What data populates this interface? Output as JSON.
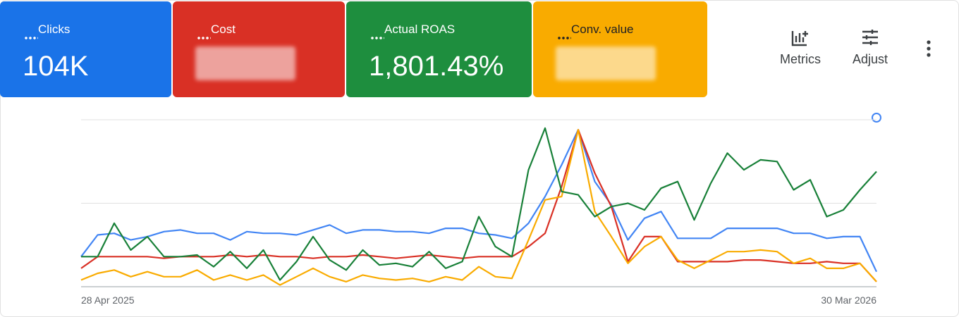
{
  "cards": [
    {
      "label": "Clicks",
      "value": "104K",
      "color": "#1a73e8",
      "text_color": "#ffffff"
    },
    {
      "label": "Cost",
      "color": "#d93025",
      "text_color": "#ffffff"
    },
    {
      "label": "Actual ROAS",
      "value": "1,801.43%",
      "color": "#1e8e3e",
      "text_color": "#ffffff"
    },
    {
      "label": "Conv. value",
      "color": "#f9ab00",
      "text_color": "#202124"
    }
  ],
  "toolbar": {
    "metrics": "Metrics",
    "adjust": "Adjust"
  },
  "chart_data": {
    "type": "line",
    "categories": [
      "28 Apr 2025",
      null,
      null,
      null,
      null,
      null,
      null,
      null,
      null,
      null,
      null,
      null,
      null,
      null,
      null,
      null,
      null,
      null,
      null,
      null,
      null,
      null,
      null,
      null,
      null,
      null,
      null,
      null,
      null,
      null,
      null,
      null,
      null,
      null,
      null,
      null,
      null,
      null,
      null,
      null,
      null,
      null,
      null,
      null,
      null,
      null,
      null,
      null,
      "30 Mar 2026"
    ],
    "ylim": [
      0,
      100
    ],
    "gridlines": [
      0,
      50,
      100
    ],
    "series": [
      {
        "color": "#4285f4",
        "values": [
          18,
          31,
          32,
          28,
          30,
          33,
          34,
          32,
          32,
          28,
          33,
          32,
          32,
          31,
          34,
          37,
          32,
          34,
          34,
          33,
          33,
          32,
          35,
          35,
          32,
          31,
          29,
          38,
          54,
          73,
          94,
          63,
          49,
          28,
          41,
          45,
          29,
          29,
          29,
          35,
          35,
          35,
          35,
          32,
          32,
          29,
          30,
          30,
          9
        ]
      },
      {
        "color": "#d93025",
        "values": [
          11,
          18,
          18,
          18,
          18,
          17,
          18,
          18,
          18,
          19,
          18,
          19,
          18,
          18,
          17,
          18,
          18,
          19,
          18,
          17,
          18,
          19,
          18,
          17,
          18,
          18,
          18,
          24,
          32,
          60,
          94,
          68,
          48,
          15,
          30,
          30,
          15,
          15,
          15,
          15,
          16,
          16,
          15,
          14,
          14,
          15,
          14,
          14,
          3
        ]
      },
      {
        "color": "#f9ab00",
        "values": [
          4,
          8,
          10,
          6,
          9,
          6,
          6,
          10,
          4,
          7,
          4,
          7,
          1,
          6,
          11,
          6,
          3,
          7,
          5,
          4,
          5,
          3,
          6,
          4,
          12,
          6,
          5,
          28,
          52,
          54,
          94,
          45,
          30,
          14,
          24,
          30,
          16,
          11,
          16,
          21,
          21,
          22,
          21,
          14,
          17,
          11,
          11,
          14,
          3
        ]
      },
      {
        "color": "#188038",
        "values": [
          18,
          18,
          38,
          22,
          30,
          18,
          18,
          19,
          12,
          21,
          11,
          22,
          4,
          15,
          30,
          16,
          10,
          22,
          13,
          14,
          12,
          21,
          11,
          15,
          42,
          24,
          18,
          70,
          95,
          57,
          55,
          42,
          48,
          50,
          46,
          59,
          63,
          40,
          62,
          80,
          70,
          76,
          75,
          58,
          64,
          42,
          46,
          58,
          69
        ]
      }
    ]
  }
}
